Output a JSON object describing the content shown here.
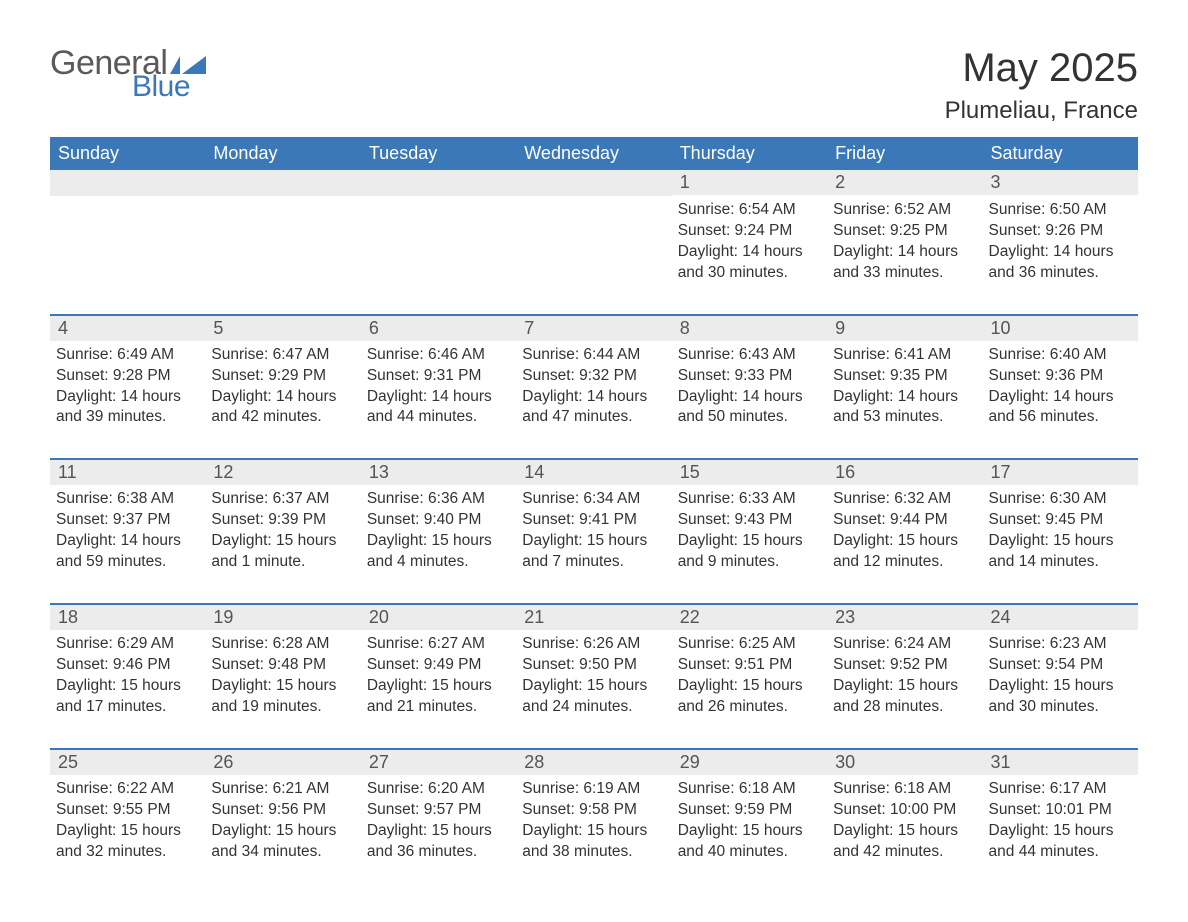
{
  "brand": {
    "word1": "General",
    "word2": "Blue",
    "logo_color": "#3a78b8",
    "text_color": "#5a5a5a"
  },
  "title": {
    "month_year": "May 2025",
    "location": "Plumeliau, France",
    "title_fontsize": 40,
    "location_fontsize": 24
  },
  "colors": {
    "header_bg": "#3a78b8",
    "header_text": "#ffffff",
    "daynum_bg": "#ececec",
    "daynum_text": "#555555",
    "row_divider": "#3a78b8",
    "body_text": "#333333",
    "page_bg": "#ffffff"
  },
  "weekdays": [
    "Sunday",
    "Monday",
    "Tuesday",
    "Wednesday",
    "Thursday",
    "Friday",
    "Saturday"
  ],
  "weeks": [
    [
      null,
      null,
      null,
      null,
      {
        "n": "1",
        "sunrise": "6:54 AM",
        "sunset": "9:24 PM",
        "daylight": "14 hours and 30 minutes."
      },
      {
        "n": "2",
        "sunrise": "6:52 AM",
        "sunset": "9:25 PM",
        "daylight": "14 hours and 33 minutes."
      },
      {
        "n": "3",
        "sunrise": "6:50 AM",
        "sunset": "9:26 PM",
        "daylight": "14 hours and 36 minutes."
      }
    ],
    [
      {
        "n": "4",
        "sunrise": "6:49 AM",
        "sunset": "9:28 PM",
        "daylight": "14 hours and 39 minutes."
      },
      {
        "n": "5",
        "sunrise": "6:47 AM",
        "sunset": "9:29 PM",
        "daylight": "14 hours and 42 minutes."
      },
      {
        "n": "6",
        "sunrise": "6:46 AM",
        "sunset": "9:31 PM",
        "daylight": "14 hours and 44 minutes."
      },
      {
        "n": "7",
        "sunrise": "6:44 AM",
        "sunset": "9:32 PM",
        "daylight": "14 hours and 47 minutes."
      },
      {
        "n": "8",
        "sunrise": "6:43 AM",
        "sunset": "9:33 PM",
        "daylight": "14 hours and 50 minutes."
      },
      {
        "n": "9",
        "sunrise": "6:41 AM",
        "sunset": "9:35 PM",
        "daylight": "14 hours and 53 minutes."
      },
      {
        "n": "10",
        "sunrise": "6:40 AM",
        "sunset": "9:36 PM",
        "daylight": "14 hours and 56 minutes."
      }
    ],
    [
      {
        "n": "11",
        "sunrise": "6:38 AM",
        "sunset": "9:37 PM",
        "daylight": "14 hours and 59 minutes."
      },
      {
        "n": "12",
        "sunrise": "6:37 AM",
        "sunset": "9:39 PM",
        "daylight": "15 hours and 1 minute."
      },
      {
        "n": "13",
        "sunrise": "6:36 AM",
        "sunset": "9:40 PM",
        "daylight": "15 hours and 4 minutes."
      },
      {
        "n": "14",
        "sunrise": "6:34 AM",
        "sunset": "9:41 PM",
        "daylight": "15 hours and 7 minutes."
      },
      {
        "n": "15",
        "sunrise": "6:33 AM",
        "sunset": "9:43 PM",
        "daylight": "15 hours and 9 minutes."
      },
      {
        "n": "16",
        "sunrise": "6:32 AM",
        "sunset": "9:44 PM",
        "daylight": "15 hours and 12 minutes."
      },
      {
        "n": "17",
        "sunrise": "6:30 AM",
        "sunset": "9:45 PM",
        "daylight": "15 hours and 14 minutes."
      }
    ],
    [
      {
        "n": "18",
        "sunrise": "6:29 AM",
        "sunset": "9:46 PM",
        "daylight": "15 hours and 17 minutes."
      },
      {
        "n": "19",
        "sunrise": "6:28 AM",
        "sunset": "9:48 PM",
        "daylight": "15 hours and 19 minutes."
      },
      {
        "n": "20",
        "sunrise": "6:27 AM",
        "sunset": "9:49 PM",
        "daylight": "15 hours and 21 minutes."
      },
      {
        "n": "21",
        "sunrise": "6:26 AM",
        "sunset": "9:50 PM",
        "daylight": "15 hours and 24 minutes."
      },
      {
        "n": "22",
        "sunrise": "6:25 AM",
        "sunset": "9:51 PM",
        "daylight": "15 hours and 26 minutes."
      },
      {
        "n": "23",
        "sunrise": "6:24 AM",
        "sunset": "9:52 PM",
        "daylight": "15 hours and 28 minutes."
      },
      {
        "n": "24",
        "sunrise": "6:23 AM",
        "sunset": "9:54 PM",
        "daylight": "15 hours and 30 minutes."
      }
    ],
    [
      {
        "n": "25",
        "sunrise": "6:22 AM",
        "sunset": "9:55 PM",
        "daylight": "15 hours and 32 minutes."
      },
      {
        "n": "26",
        "sunrise": "6:21 AM",
        "sunset": "9:56 PM",
        "daylight": "15 hours and 34 minutes."
      },
      {
        "n": "27",
        "sunrise": "6:20 AM",
        "sunset": "9:57 PM",
        "daylight": "15 hours and 36 minutes."
      },
      {
        "n": "28",
        "sunrise": "6:19 AM",
        "sunset": "9:58 PM",
        "daylight": "15 hours and 38 minutes."
      },
      {
        "n": "29",
        "sunrise": "6:18 AM",
        "sunset": "9:59 PM",
        "daylight": "15 hours and 40 minutes."
      },
      {
        "n": "30",
        "sunrise": "6:18 AM",
        "sunset": "10:00 PM",
        "daylight": "15 hours and 42 minutes."
      },
      {
        "n": "31",
        "sunrise": "6:17 AM",
        "sunset": "10:01 PM",
        "daylight": "15 hours and 44 minutes."
      }
    ]
  ],
  "labels": {
    "sunrise": "Sunrise: ",
    "sunset": "Sunset: ",
    "daylight": "Daylight: "
  }
}
